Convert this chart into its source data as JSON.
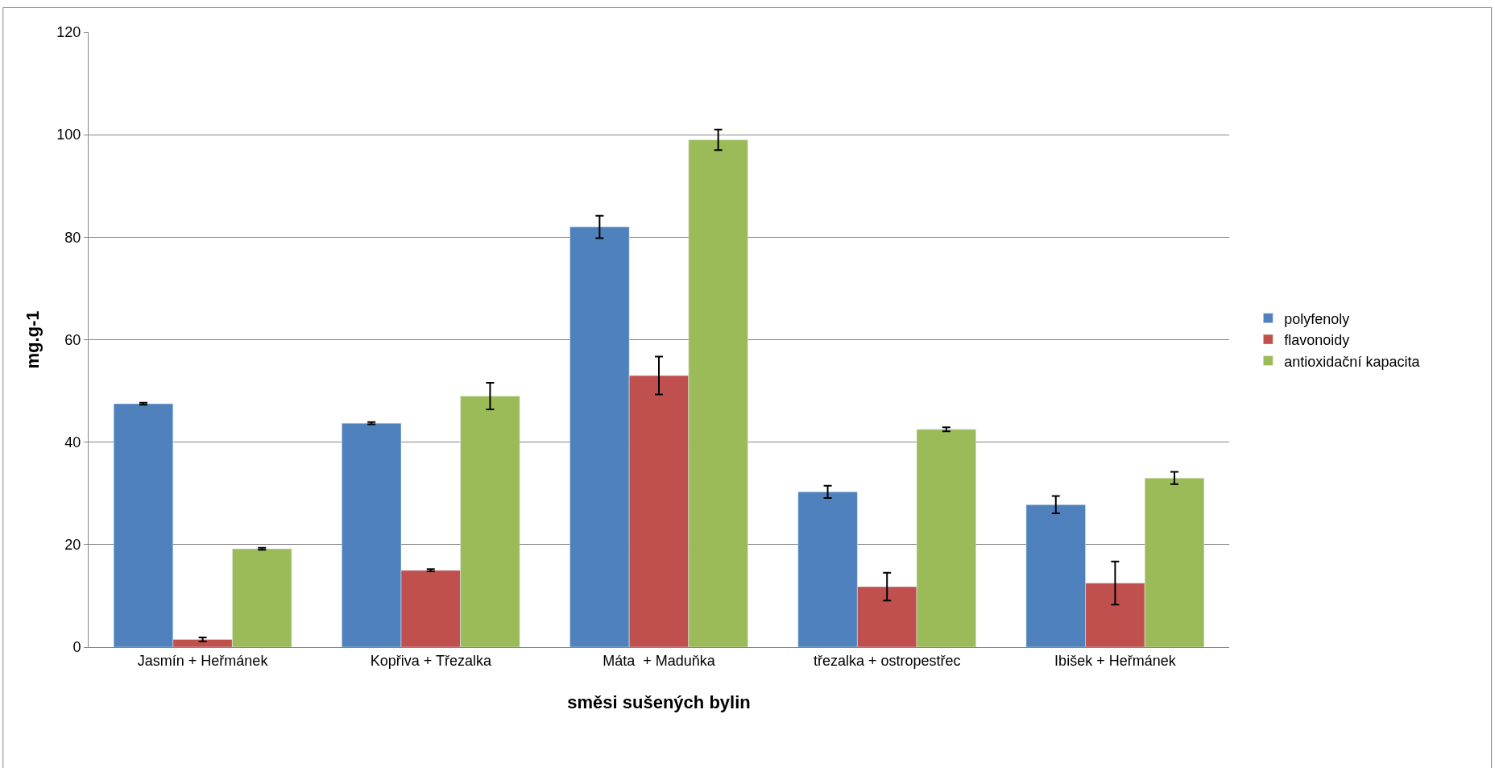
{
  "chart_data": {
    "type": "bar",
    "xlabel": "směsi sušených bylin",
    "ylabel": "mg.g-1",
    "categories": [
      "Jasmín + Heřmánek",
      "Kopřiva + Třezalka",
      "Máta  + Maduňka",
      "třezalka + ostropestřec",
      "Ibišek + Heřmánek"
    ],
    "series": [
      {
        "name": "polyfenoly",
        "color": "#4f81bd",
        "values": [
          47.5,
          43.7,
          82,
          30.3,
          27.8
        ],
        "errors": [
          0.2,
          0.2,
          2.2,
          1.2,
          1.7
        ]
      },
      {
        "name": "flavonoidy",
        "color": "#c0504d",
        "values": [
          1.5,
          15,
          53,
          11.8,
          12.5
        ],
        "errors": [
          0.4,
          0.2,
          3.7,
          2.7,
          4.2
        ]
      },
      {
        "name": "antioxidační kapacita",
        "color": "#9bbb59",
        "values": [
          19.2,
          49,
          99,
          42.5,
          33
        ],
        "errors": [
          0.2,
          2.6,
          2,
          0.4,
          1.2
        ]
      }
    ],
    "ylim": [
      0,
      120
    ],
    "yticks": [
      0,
      20,
      40,
      60,
      80,
      100,
      120
    ],
    "grid": "y",
    "legend": "right"
  }
}
